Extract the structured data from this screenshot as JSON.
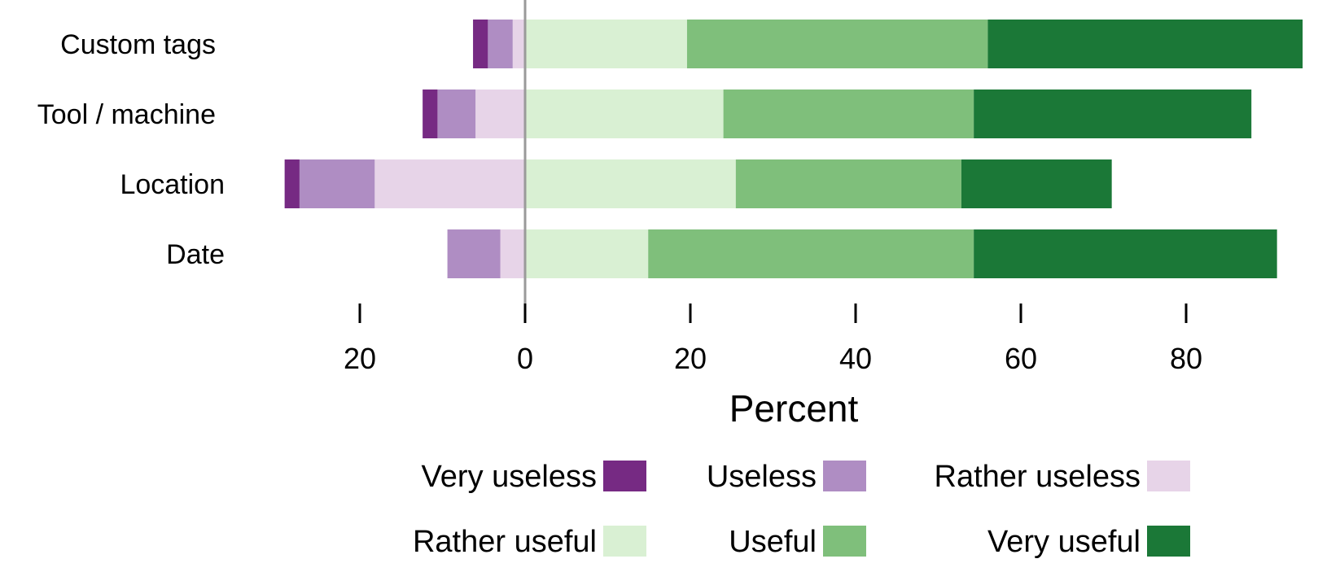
{
  "chart_data": {
    "type": "bar",
    "orientation": "horizontal",
    "stacked": "diverging",
    "title": "",
    "xlabel": "Percent",
    "ylabel": "",
    "xlim": [
      -30,
      94
    ],
    "xticks": [
      -20,
      0,
      20,
      40,
      60,
      80
    ],
    "xtick_labels": [
      "20",
      "0",
      "20",
      "40",
      "60",
      "80"
    ],
    "categories": [
      "Custom tags",
      "Tool / machine",
      "Location",
      "Date"
    ],
    "series": [
      {
        "name": "Very useless",
        "side": "negative",
        "color": "#762a83",
        "values": [
          1.8,
          1.8,
          1.8,
          0
        ]
      },
      {
        "name": "Useless",
        "side": "negative",
        "color": "#af8dc3",
        "values": [
          3.0,
          4.6,
          9.1,
          6.4
        ]
      },
      {
        "name": "Rather useless",
        "side": "negative",
        "color": "#e7d4e8",
        "values": [
          1.5,
          6.0,
          18.2,
          3.0
        ]
      },
      {
        "name": "Rather useful",
        "side": "positive",
        "color": "#d9f0d3",
        "values": [
          19.6,
          24.0,
          25.5,
          14.9
        ]
      },
      {
        "name": "Useful",
        "side": "positive",
        "color": "#7fbf7b",
        "values": [
          36.4,
          30.3,
          27.3,
          39.4
        ]
      },
      {
        "name": "Very useful",
        "side": "positive",
        "color": "#1b7837",
        "values": [
          38.1,
          33.6,
          18.2,
          36.7
        ]
      }
    ],
    "grid": false,
    "legend_position": "bottom",
    "legend_rows": [
      [
        "Very useless",
        "Useless",
        "Rather useless"
      ],
      [
        "Rather useful",
        "Useful",
        "Very useful"
      ]
    ]
  }
}
